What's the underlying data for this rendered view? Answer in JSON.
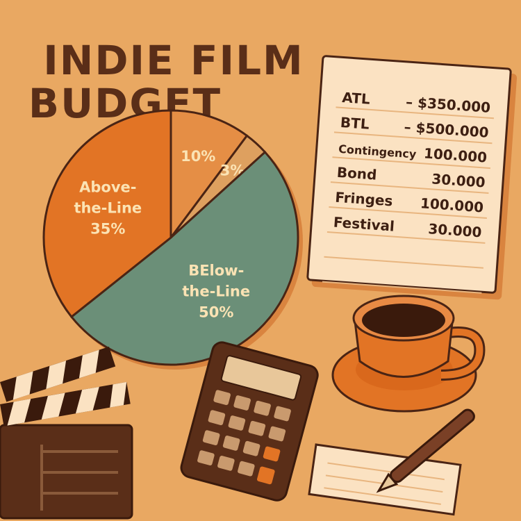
{
  "title": {
    "line1": "INDIE FILM",
    "line2": "BUDGET"
  },
  "chart_data": {
    "type": "pie",
    "title": "INDIE FILM BUDGET",
    "slices": [
      {
        "label": "",
        "value": 10,
        "display": "10%",
        "color": "#e58e45"
      },
      {
        "label": "",
        "value": 3,
        "display": "3%",
        "color": "#dea05f"
      },
      {
        "label": "BElow-the-Line",
        "label_lines": [
          "BElow-",
          "the-Line"
        ],
        "value": 50,
        "display": "50%",
        "color": "#6b8f78"
      },
      {
        "label": "Above-the-Line",
        "label_lines": [
          "Above-",
          "the-Line"
        ],
        "value": 35,
        "display": "35%",
        "color": "#e27425"
      }
    ]
  },
  "receipt": {
    "rows": [
      {
        "key": "ATL",
        "value": "– $350.000"
      },
      {
        "key": "BTL",
        "value": "– $500.000"
      },
      {
        "key": "Contingency",
        "value": "100.000"
      },
      {
        "key": "Bond",
        "value": "30.000"
      },
      {
        "key": "Fringes",
        "value": "100.000"
      },
      {
        "key": "Festival",
        "value": "30.000"
      }
    ]
  },
  "decor_icons": [
    "clapperboard-icon",
    "calculator-icon",
    "coffee-cup-icon",
    "notepad-icon",
    "pen-icon"
  ]
}
